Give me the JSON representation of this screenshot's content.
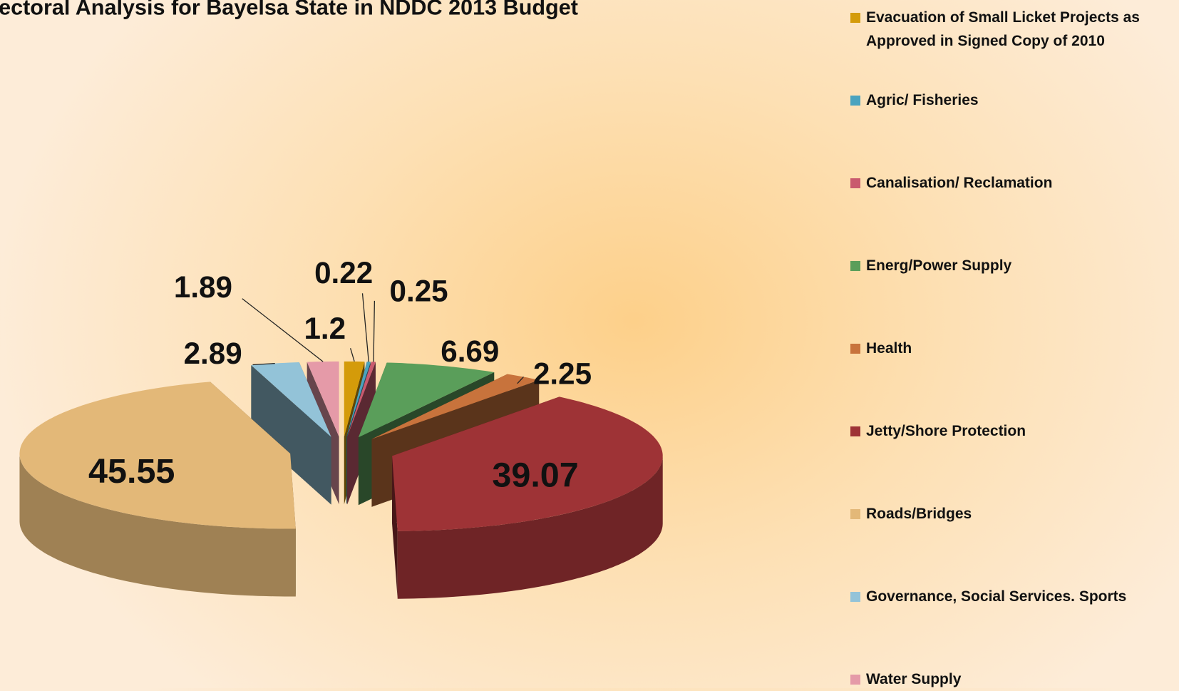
{
  "chart_data": {
    "type": "pie",
    "title": "ectoral Analysis for Bayelsa State in NDDC 2013 Budget",
    "categories": [
      "Evacuation of Small Licket Projects as Approved in Signed Copy of 2010",
      "Agric/ Fisheries",
      "Canalisation/ Reclamation",
      "Energ/Power Supply",
      "Health",
      "Jetty/Shore Protection",
      "Roads/Bridges",
      "Governance, Social Services. Sports",
      "Water Supply"
    ],
    "values": [
      1.2,
      0.22,
      0.25,
      6.69,
      2.25,
      39.07,
      45.55,
      2.89,
      1.89
    ],
    "colors": [
      "#d49b0a",
      "#4aa3bf",
      "#c95a6e",
      "#5a9e5a",
      "#c8733c",
      "#9e3336",
      "#e3b878",
      "#93c3d8",
      "#e59aa8"
    ],
    "legend": "right"
  }
}
